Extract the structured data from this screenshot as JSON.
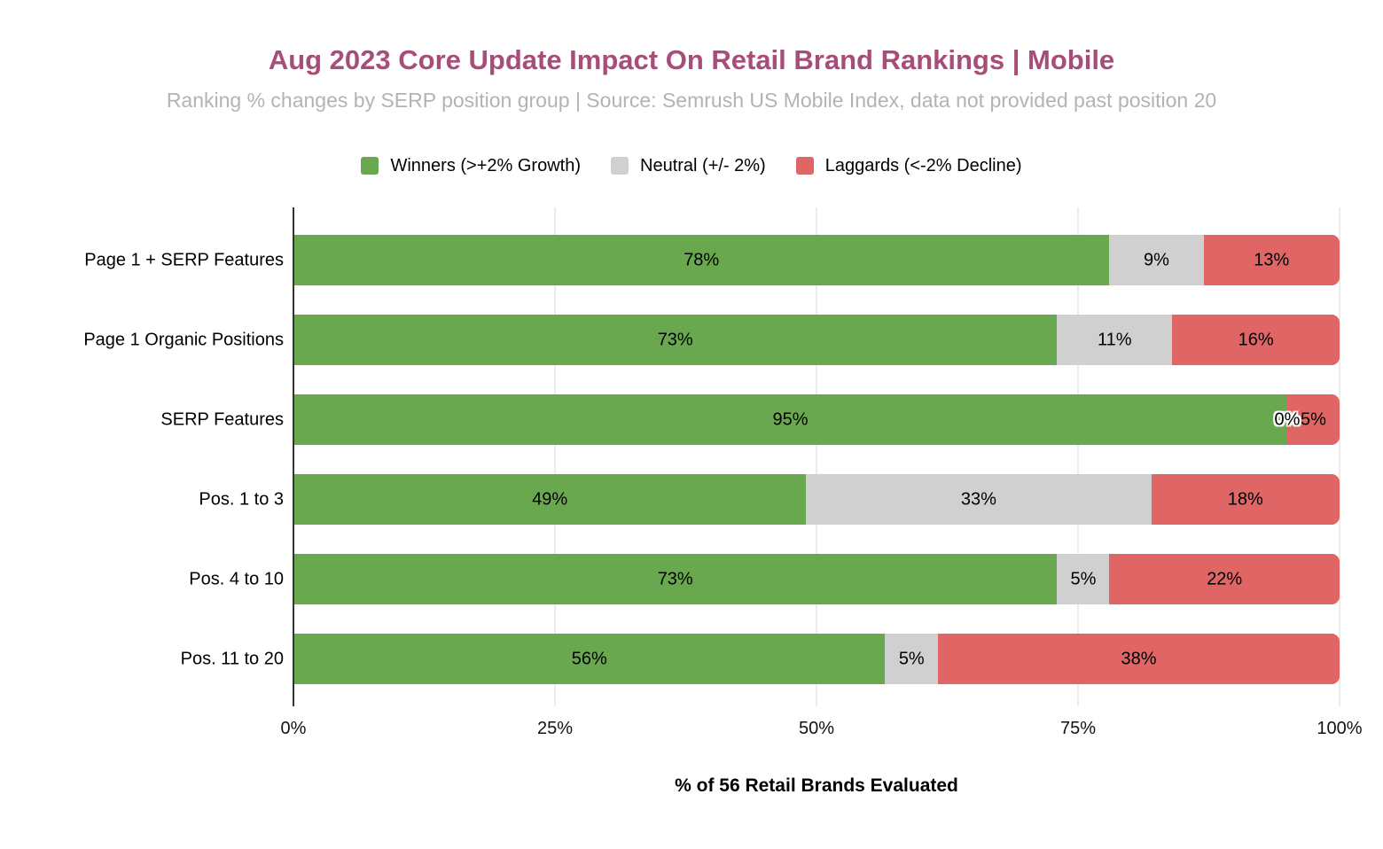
{
  "header": {
    "title": "Aug 2023 Core Update Impact On Retail Brand Rankings | Mobile",
    "subtitle": "Ranking % changes by SERP position group | Source: Semrush US Mobile Index, data not provided past position 20"
  },
  "colors": {
    "title": "#a64d79",
    "subtitle": "#b3b3b3",
    "winners_green": "#6aa84f",
    "neutral_gray": "#d0d0d0",
    "laggards_red": "#e06666",
    "gridline": "#d9d9d9",
    "axis_line": "#333333"
  },
  "chart_data": {
    "type": "bar",
    "orientation": "horizontal",
    "stacked": true,
    "stacked_total": 100,
    "title": "Aug 2023 Core Update Impact On Retail Brand Rankings | Mobile",
    "subtitle": "Ranking % changes by SERP position group | Source: Semrush US Mobile Index, data not provided past position 20",
    "categories": [
      "Page 1 + SERP Features",
      "Page 1 Organic Positions",
      "SERP Features",
      "Pos. 1 to 3",
      "Pos. 4 to 10",
      "Pos. 11 to 20"
    ],
    "series": [
      {
        "name": "Winners (>+2% Growth)",
        "color": "#6aa84f",
        "values": [
          78,
          73,
          95,
          49,
          73,
          56
        ]
      },
      {
        "name": "Neutral (+/- 2%)",
        "color": "#d0d0d0",
        "values": [
          9,
          11,
          0,
          33,
          5,
          5
        ]
      },
      {
        "name": "Laggards (<-2% Decline)",
        "color": "#e06666",
        "values": [
          13,
          16,
          5,
          18,
          22,
          38
        ]
      }
    ],
    "value_suffix": "%",
    "x_ticks": [
      "0%",
      "25%",
      "50%",
      "75%",
      "100%"
    ],
    "xlim": [
      0,
      100
    ],
    "xlabel": "% of 56 Retail Brands Evaluated",
    "grid": true,
    "legend_position": "top"
  }
}
